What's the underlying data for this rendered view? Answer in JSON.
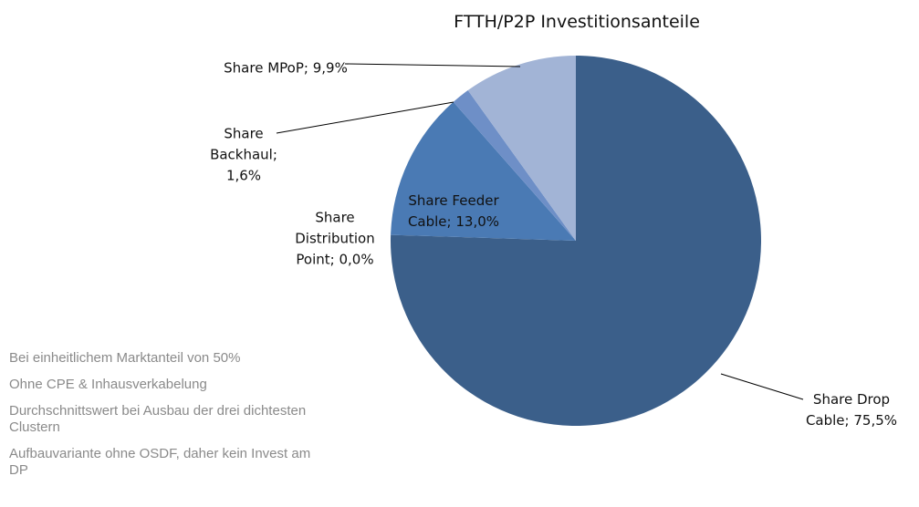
{
  "chart_data": {
    "type": "pie",
    "title": "FTTH/P2P Investitionsanteile",
    "categories": [
      "Share Drop Cable",
      "Share Distribution Point",
      "Share Feeder Cable",
      "Share Backhaul",
      "Share MPoP"
    ],
    "values": [
      75.5,
      0.0,
      13.0,
      1.6,
      9.9
    ],
    "value_labels": [
      "75,5%",
      "0,0%",
      "13,0%",
      "1,6%",
      "9,9%"
    ],
    "label_separator": ";",
    "colors": [
      "#3b5f8a",
      "#3b5f8a",
      "#4a7ab4",
      "#6e8fc7",
      "#a2b4d6"
    ]
  },
  "notes": [
    "Bei einheitlichem Marktanteil von 50%",
    "Ohne CPE & Inhausverkabelung",
    "Durchschnittswert bei Ausbau der drei dichtesten Clustern",
    "Aufbauvariante ohne OSDF, daher kein Invest am DP"
  ]
}
